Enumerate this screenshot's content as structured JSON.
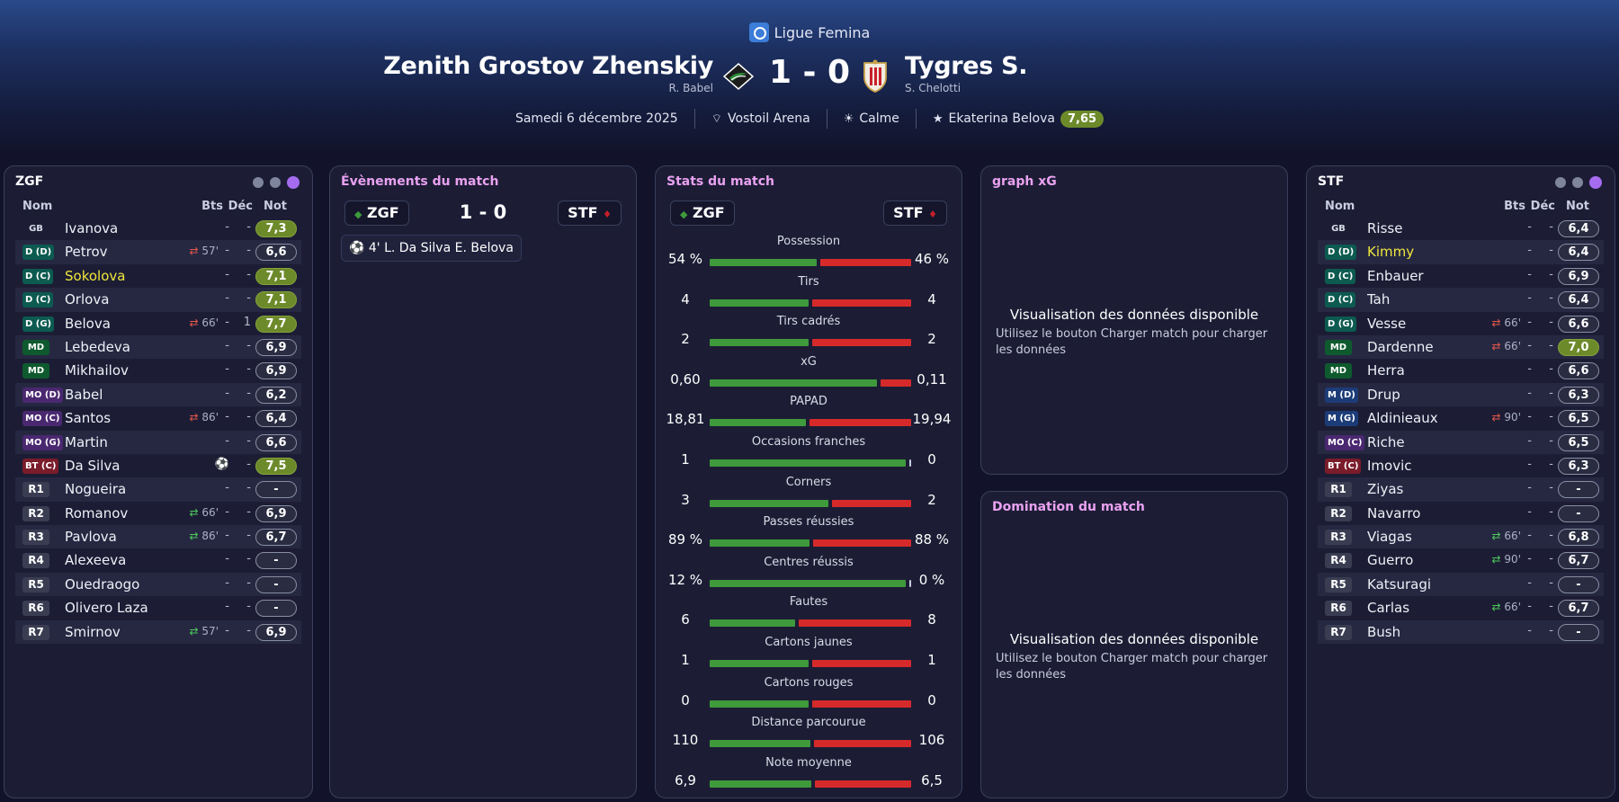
{
  "header": {
    "league": "Ligue Femina",
    "home_team": "Zenith Grostov Zhenskiy",
    "home_coach": "R. Babel",
    "away_team": "Tygres S.",
    "away_coach": "S. Chelotti",
    "score": "1 - 0",
    "date": "Samedi 6 décembre 2025",
    "stadium": "Vostoil Arena",
    "weather": "Calme",
    "motm_name": "Ekaterina Belova",
    "motm_rating": "7,65",
    "crest_icon_home": "zgf-crest-icon",
    "crest_icon_away": "stf-crest-icon"
  },
  "home_lineup": {
    "title": "ZGF",
    "col_name": "Nom",
    "col_goals": "Bts",
    "col_dec": "Déc",
    "col_rating": "Not",
    "players": [
      {
        "pos": "GB",
        "name": "Ivanova",
        "bts": "-",
        "dec": "-",
        "rating": "7,3"
      },
      {
        "pos": "D (D)",
        "name": "Petrov",
        "sub": "57'",
        "bts": "-",
        "dec": "-",
        "rating": "6,6"
      },
      {
        "pos": "D (C)",
        "name": "Sokolova",
        "bts": "-",
        "dec": "-",
        "rating": "7,1"
      },
      {
        "pos": "D (C)",
        "name": "Orlova",
        "bts": "-",
        "dec": "-",
        "rating": "7,1"
      },
      {
        "pos": "D (G)",
        "name": "Belova",
        "sub": "66'",
        "bts": "-",
        "dec": "1",
        "rating": "7,7"
      },
      {
        "pos": "MD",
        "name": "Lebedeva",
        "bts": "-",
        "dec": "-",
        "rating": "6,9"
      },
      {
        "pos": "MD",
        "name": "Mikhailov",
        "bts": "-",
        "dec": "-",
        "rating": "6,9"
      },
      {
        "pos": "MO (D)",
        "name": "Babel",
        "bts": "-",
        "dec": "-",
        "rating": "6,2"
      },
      {
        "pos": "MO (C)",
        "name": "Santos",
        "sub": "86'",
        "bts": "-",
        "dec": "-",
        "rating": "6,4"
      },
      {
        "pos": "MO (G)",
        "name": "Martin",
        "bts": "-",
        "dec": "-",
        "rating": "6,6"
      },
      {
        "pos": "BT (C)",
        "name": "Da Silva",
        "dec": "-",
        "rating": "7,5"
      },
      {
        "pos": "R1",
        "name": "Nogueira",
        "bts": "-",
        "dec": "-",
        "rating": "-"
      },
      {
        "pos": "R2",
        "name": "Romanov",
        "sub": "66'",
        "bts": "-",
        "dec": "-",
        "rating": "6,9"
      },
      {
        "pos": "R3",
        "name": "Pavlova",
        "sub": "86'",
        "bts": "-",
        "dec": "-",
        "rating": "6,7"
      },
      {
        "pos": "R4",
        "name": "Alexeeva",
        "bts": "-",
        "dec": "-",
        "rating": "-"
      },
      {
        "pos": "R5",
        "name": "Ouedraogo",
        "bts": "-",
        "dec": "-",
        "rating": "-"
      },
      {
        "pos": "R6",
        "name": "Olivero Laza",
        "bts": "-",
        "dec": "-",
        "rating": "-"
      },
      {
        "pos": "R7",
        "name": "Smirnov",
        "sub": "57'",
        "bts": "-",
        "dec": "-",
        "rating": "6,9"
      }
    ]
  },
  "away_lineup": {
    "title": "STF",
    "col_name": "Nom",
    "col_goals": "Bts",
    "col_dec": "Déc",
    "col_rating": "Not",
    "players": [
      {
        "pos": "GB",
        "name": "Risse",
        "bts": "-",
        "dec": "-",
        "rating": "6,4"
      },
      {
        "pos": "D (D)",
        "name": "Kimmy",
        "bts": "-",
        "dec": "-",
        "rating": "6,4"
      },
      {
        "pos": "D (C)",
        "name": "Enbauer",
        "bts": "-",
        "dec": "-",
        "rating": "6,9"
      },
      {
        "pos": "D (C)",
        "name": "Tah",
        "bts": "-",
        "dec": "-",
        "rating": "6,4"
      },
      {
        "pos": "D (G)",
        "name": "Vesse",
        "sub": "66'",
        "bts": "-",
        "dec": "-",
        "rating": "6,6"
      },
      {
        "pos": "MD",
        "name": "Dardenne",
        "sub": "66'",
        "bts": "-",
        "dec": "-",
        "rating": "7,0"
      },
      {
        "pos": "MD",
        "name": "Herra",
        "bts": "-",
        "dec": "-",
        "rating": "6,6"
      },
      {
        "pos": "M (D)",
        "name": "Drup",
        "bts": "-",
        "dec": "-",
        "rating": "6,3"
      },
      {
        "pos": "M (G)",
        "name": "Aldinieaux",
        "sub": "90'",
        "bts": "-",
        "dec": "-",
        "rating": "6,5"
      },
      {
        "pos": "MO (C)",
        "name": "Riche",
        "bts": "-",
        "dec": "-",
        "rating": "6,5"
      },
      {
        "pos": "BT (C)",
        "name": "Imovic",
        "bts": "-",
        "dec": "-",
        "rating": "6,3"
      },
      {
        "pos": "R1",
        "name": "Ziyas",
        "bts": "-",
        "dec": "-",
        "rating": "-"
      },
      {
        "pos": "R2",
        "name": "Navarro",
        "bts": "-",
        "dec": "-",
        "rating": "-"
      },
      {
        "pos": "R3",
        "name": "Viagas",
        "sub": "66'",
        "bts": "-",
        "dec": "-",
        "rating": "6,8"
      },
      {
        "pos": "R4",
        "name": "Guerro",
        "sub": "90'",
        "bts": "-",
        "dec": "-",
        "rating": "6,7"
      },
      {
        "pos": "R5",
        "name": "Katsuragi",
        "bts": "-",
        "dec": "-",
        "rating": "-"
      },
      {
        "pos": "R6",
        "name": "Carlas",
        "sub": "66'",
        "bts": "-",
        "dec": "-",
        "rating": "6,7"
      },
      {
        "pos": "R7",
        "name": "Bush",
        "bts": "-",
        "dec": "-",
        "rating": "-"
      }
    ]
  },
  "events": {
    "title": "Évènements du match",
    "home_abbr": "ZGF",
    "away_abbr": "STF",
    "score": "1 - 0",
    "items": [
      {
        "icon": "ball-icon",
        "minute": "4'",
        "text": "L. Da Silva",
        "assist": "E. Belova"
      }
    ]
  },
  "stats": {
    "title": "Stats du match",
    "home_abbr": "ZGF",
    "away_abbr": "STF",
    "rows": [
      {
        "label": "Possession",
        "home": "54 %",
        "away": "46 %",
        "home_share": 0.54
      },
      {
        "label": "Tirs",
        "home": "4",
        "away": "4",
        "home_share": 0.5
      },
      {
        "label": "Tirs cadrés",
        "home": "2",
        "away": "2",
        "home_share": 0.5
      },
      {
        "label": "xG",
        "home": "0,60",
        "away": "0,11",
        "home_share": 0.845
      },
      {
        "label": "PAPAD",
        "home": "18,81",
        "away": "19,94",
        "home_share": 0.485
      },
      {
        "label": "Occasions franches",
        "home": "1",
        "away": "0",
        "home_share": 1.0
      },
      {
        "label": "Corners",
        "home": "3",
        "away": "2",
        "home_share": 0.6
      },
      {
        "label": "Passes réussies",
        "home": "89 %",
        "away": "88 %",
        "home_share": 0.503
      },
      {
        "label": "Centres réussis",
        "home": "12 %",
        "away": "0 %",
        "home_share": 1.0
      },
      {
        "label": "Fautes",
        "home": "6",
        "away": "8",
        "home_share": 0.43
      },
      {
        "label": "Cartons jaunes",
        "home": "1",
        "away": "1",
        "home_share": 0.5
      },
      {
        "label": "Cartons rouges",
        "home": "0",
        "away": "0",
        "home_share": 0.5
      },
      {
        "label": "Distance parcourue",
        "home": "110",
        "away": "106",
        "home_share": 0.509
      },
      {
        "label": "Note moyenne",
        "home": "6,9",
        "away": "6,5",
        "home_share": 0.515
      }
    ]
  },
  "xg_graph": {
    "title": "graph xG",
    "message": "Visualisation des données disponible",
    "sub": "Utilisez le bouton Charger match pour charger les données"
  },
  "domination": {
    "title": "Domination du match",
    "message": "Visualisation des données disponible",
    "sub": "Utilisez le bouton Charger match pour charger les données"
  },
  "colors": {
    "home_bar": "#3f9a3c",
    "away_bar": "#d62a2a",
    "accent": "#a56cf0",
    "title_pink": "#e9a1f0",
    "highlight": "#f0e63c",
    "rating_good": "#6d8a2a"
  }
}
